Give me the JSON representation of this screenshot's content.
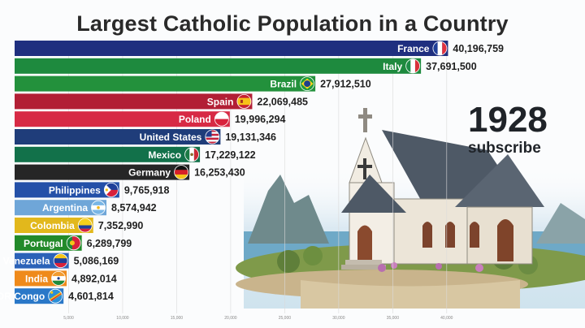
{
  "title": "Largest Catholic Population in a Country",
  "year": "1928",
  "subscribe_label": "subscribe",
  "chart_data": {
    "type": "bar",
    "orientation": "horizontal",
    "title": "Largest Catholic Population in a Country",
    "categories": [
      "France",
      "Italy",
      "Brazil",
      "Spain",
      "Poland",
      "United States",
      "Mexico",
      "Germany",
      "Philippines",
      "Argentina",
      "Colombia",
      "Portugal",
      "Venezuela",
      "India",
      "DR Congo"
    ],
    "values": [
      40196759,
      37691500,
      27912510,
      22069485,
      19996294,
      19131346,
      17229122,
      16253430,
      9765918,
      8574942,
      7352990,
      6289799,
      5086169,
      4892014,
      4601814
    ],
    "value_labels": [
      "40,196,759",
      "37,691,500",
      "27,912,510",
      "22,069,485",
      "19,996,294",
      "19,131,346",
      "17,229,122",
      "16,253,430",
      "9,765,918",
      "8,574,942",
      "7,352,990",
      "6,289,799",
      "5,086,169",
      "4,892,014",
      "4,601,814"
    ],
    "bar_colors": [
      "#1f2f7f",
      "#1e8a3e",
      "#23913c",
      "#b21f35",
      "#d72a45",
      "#1f3d7a",
      "#12714a",
      "#262626",
      "#2450a8",
      "#6fa6d8",
      "#e2b81c",
      "#228a2a",
      "#2b62b8",
      "#ef8a1b",
      "#2a78c8"
    ],
    "flags": [
      "france-flag",
      "italy-flag",
      "brazil-flag",
      "spain-flag",
      "poland-flag",
      "united-states-flag",
      "mexico-flag",
      "germany-flag",
      "philippines-flag",
      "argentina-flag",
      "colombia-flag",
      "portugal-flag",
      "venezuela-flag",
      "india-flag",
      "dr-congo-flag"
    ],
    "x_ticks": [
      5000000,
      10000000,
      15000000,
      20000000,
      25000000,
      30000000,
      35000000,
      40000000
    ],
    "x_tick_labels": [
      "5,000",
      "10,000",
      "15,000",
      "20,000",
      "25,000",
      "30,000",
      "35,000",
      "40,000"
    ],
    "xlim": [
      0,
      44000000
    ],
    "grid": true
  }
}
